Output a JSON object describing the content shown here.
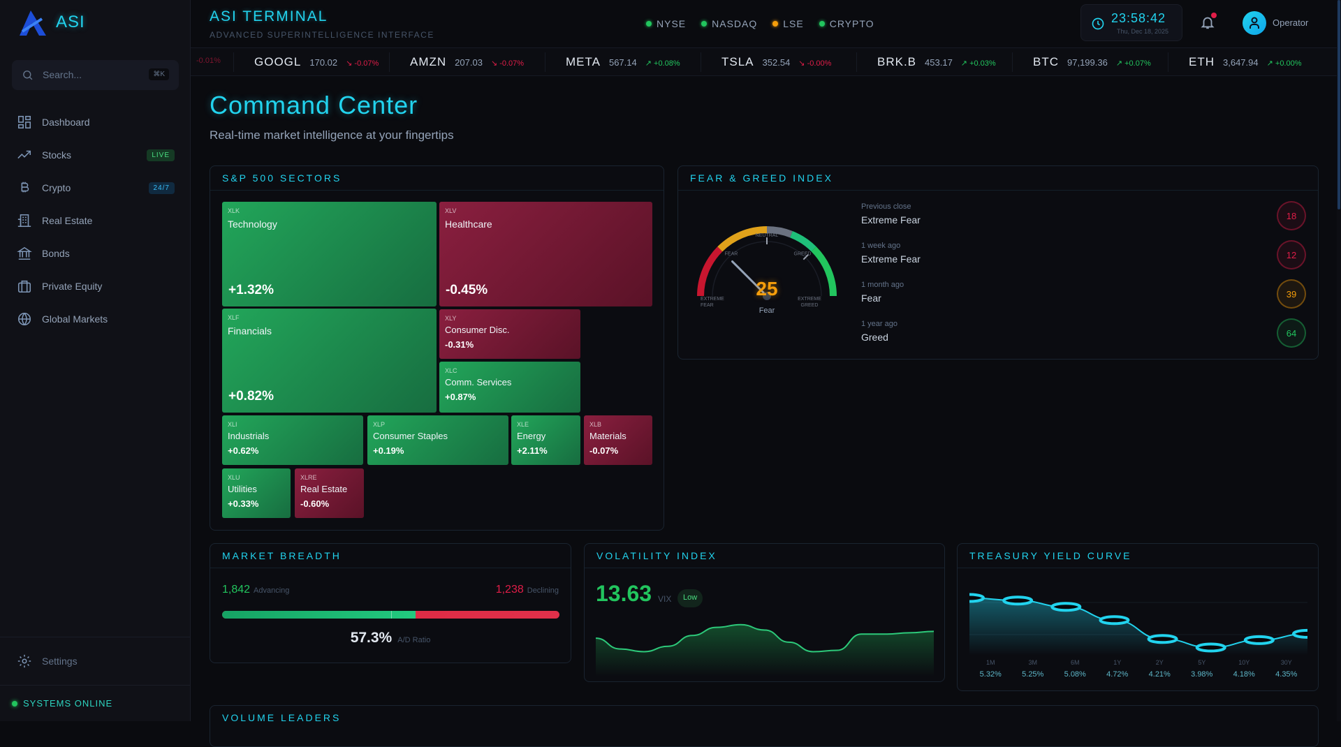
{
  "sidebar": {
    "logo": "ASI",
    "search_placeholder": "Search...",
    "search_shortcut": "⌘K",
    "items": [
      {
        "label": "Dashboard",
        "icon": "dashboard-grid-icon"
      },
      {
        "label": "Stocks",
        "icon": "trending-up-icon",
        "badge": "LIVE"
      },
      {
        "label": "Crypto",
        "icon": "bitcoin-icon",
        "badge": "24/7"
      },
      {
        "label": "Real Estate",
        "icon": "building-icon"
      },
      {
        "label": "Bonds",
        "icon": "bank-icon"
      },
      {
        "label": "Private Equity",
        "icon": "briefcase-icon"
      },
      {
        "label": "Global Markets",
        "icon": "globe-icon"
      }
    ],
    "settings": "Settings",
    "status": "SYSTEMS ONLINE"
  },
  "header": {
    "title": "ASI TERMINAL",
    "subtitle": "ADVANCED SUPERINTELLIGENCE INTERFACE",
    "markets": [
      {
        "name": "NYSE",
        "color": "#22c55e"
      },
      {
        "name": "NASDAQ",
        "color": "#22c55e"
      },
      {
        "name": "LSE",
        "color": "#f59e0b"
      },
      {
        "name": "CRYPTO",
        "color": "#22c55e"
      }
    ],
    "time": "23:58:42",
    "date": "Thu, Dec 18, 2025",
    "user": "Operator"
  },
  "ticker": {
    "partial": "-0.01%",
    "items": [
      {
        "symbol": "GOOGL",
        "price": "170.02",
        "change": "-0.07%",
        "dir": "down"
      },
      {
        "symbol": "AMZN",
        "price": "207.03",
        "change": "-0.07%",
        "dir": "down"
      },
      {
        "symbol": "META",
        "price": "567.14",
        "change": "+0.08%",
        "dir": "up"
      },
      {
        "symbol": "TSLA",
        "price": "352.54",
        "change": "-0.00%",
        "dir": "down"
      },
      {
        "symbol": "BRK.B",
        "price": "453.17",
        "change": "+0.03%",
        "dir": "up"
      },
      {
        "symbol": "BTC",
        "price": "97,199.36",
        "change": "+0.07%",
        "dir": "up"
      },
      {
        "symbol": "ETH",
        "price": "3,647.94",
        "change": "+0.00%",
        "dir": "up"
      }
    ]
  },
  "page": {
    "title": "Command Center",
    "subtitle": "Real-time market intelligence at your fingertips"
  },
  "sectors": {
    "title": "S&P 500 SECTORS",
    "tiles": [
      {
        "ticker": "XLK",
        "name": "Technology",
        "change": "+1.32%"
      },
      {
        "ticker": "XLV",
        "name": "Healthcare",
        "change": "-0.45%"
      },
      {
        "ticker": "XLF",
        "name": "Financials",
        "change": "+0.82%"
      },
      {
        "ticker": "XLY",
        "name": "Consumer Disc.",
        "change": "-0.31%"
      },
      {
        "ticker": "XLC",
        "name": "Comm. Services",
        "change": "+0.87%"
      },
      {
        "ticker": "XLI",
        "name": "Industrials",
        "change": "+0.62%"
      },
      {
        "ticker": "XLP",
        "name": "Consumer Staples",
        "change": "+0.19%"
      },
      {
        "ticker": "XLE",
        "name": "Energy",
        "change": "+2.11%"
      },
      {
        "ticker": "XLB",
        "name": "Materials",
        "change": "-0.07%"
      },
      {
        "ticker": "XLU",
        "name": "Utilities",
        "change": "+0.33%"
      },
      {
        "ticker": "XLRE",
        "name": "Real Estate",
        "change": "-0.60%"
      }
    ]
  },
  "fear_greed": {
    "title": "FEAR & GREED INDEX",
    "value": 25,
    "value_text": "25",
    "label": "Fear",
    "zones": {
      "extreme_fear": "EXTREME FEAR",
      "fear": "FEAR",
      "neutral": "NEUTRAL",
      "greed": "GREED",
      "extreme_greed": "EXTREME GREED"
    },
    "history": [
      {
        "when": "Previous close",
        "label": "Extreme Fear",
        "value": "18",
        "color": "#e11d48"
      },
      {
        "when": "1 week ago",
        "label": "Extreme Fear",
        "value": "12",
        "color": "#e11d48"
      },
      {
        "when": "1 month ago",
        "label": "Fear",
        "value": "39",
        "color": "#f59e0b"
      },
      {
        "when": "1 year ago",
        "label": "Greed",
        "value": "64",
        "color": "#22c55e"
      }
    ]
  },
  "breadth": {
    "title": "MARKET BREADTH",
    "advancing": "1,842",
    "advancing_label": "Advancing",
    "declining": "1,238",
    "declining_label": "Declining",
    "ratio": "57.3%",
    "ratio_value": 57.3,
    "ratio_label": "A/D Ratio"
  },
  "vix": {
    "title": "VOLATILITY INDEX",
    "value": "13.63",
    "unit": "VIX",
    "level": "Low",
    "sparkline": [
      14.2,
      13.4,
      13.2,
      13.6,
      14.4,
      15.0,
      15.2,
      14.8,
      13.9,
      13.2,
      13.3,
      14.5,
      14.5,
      14.6,
      14.7
    ]
  },
  "chart_data": {
    "type": "line",
    "title": "TREASURY YIELD CURVE",
    "categories": [
      "1M",
      "3M",
      "6M",
      "1Y",
      "2Y",
      "5Y",
      "10Y",
      "30Y"
    ],
    "values": [
      5.32,
      5.25,
      5.08,
      4.72,
      4.21,
      3.98,
      4.18,
      4.35
    ],
    "value_labels": [
      "5.32%",
      "5.25%",
      "5.08%",
      "4.72%",
      "4.21%",
      "3.98%",
      "4.18%",
      "4.35%"
    ],
    "unit": "%",
    "color": "#22d3ee"
  },
  "volume": {
    "title": "VOLUME LEADERS"
  },
  "colors": {
    "accent": "#22d3ee",
    "up": "#22c55e",
    "down": "#e11d48",
    "warn": "#f59e0b"
  }
}
